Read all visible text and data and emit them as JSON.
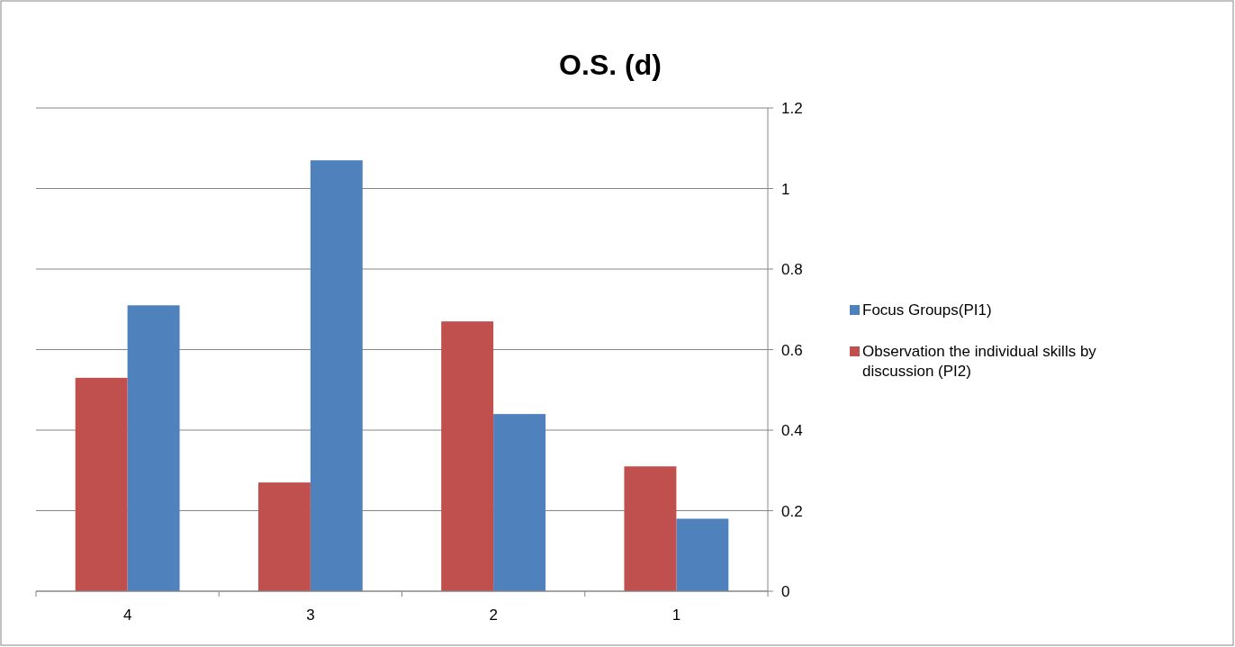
{
  "chart_data": {
    "type": "bar",
    "title": "O.S. (d)",
    "categories": [
      "4",
      "3",
      "2",
      "1"
    ],
    "series": [
      {
        "name": "Focus Groups(PI1)",
        "color": "#4f81bd",
        "values": [
          0.71,
          1.07,
          0.44,
          0.18
        ]
      },
      {
        "name": "Observation the individual skills by discussion (PI2)",
        "color": "#c0504d",
        "values": [
          0.53,
          0.27,
          0.67,
          0.31
        ]
      }
    ],
    "ylim": [
      0,
      1.2
    ],
    "yticks": [
      0,
      {
        "value": 0.2,
        "label": "0.2"
      },
      {
        "value": 0.4,
        "label": "0.4"
      },
      {
        "value": 0.6,
        "label": "0.6"
      },
      {
        "value": 0.8,
        "label": "0.8"
      },
      1,
      {
        "value": 1.2,
        "label": "1.2"
      }
    ],
    "grid": "y",
    "legend": "right"
  }
}
